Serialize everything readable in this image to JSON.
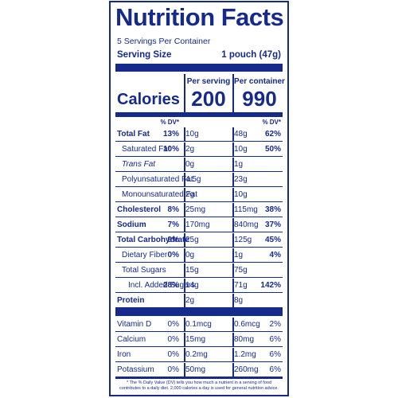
{
  "label": {
    "title": "Nutrition Facts",
    "servings_per_container": "5 Servings Per Container",
    "serving_size_label": "Serving Size",
    "serving_size_value": "1 pouch (47g)",
    "per_serving_label": "Per serving",
    "per_container_label": "Per container",
    "calories_label": "Calories",
    "calories_per_serving": "200",
    "calories_per_container": "990",
    "dv_header": "% DV*",
    "nutrients": [
      {
        "name": "Total Fat",
        "s_amt": "10g",
        "s_dv": "13%",
        "c_amt": "48g",
        "c_dv": "62%"
      },
      {
        "name": "Saturated Fat",
        "s_amt": "2g",
        "s_dv": "10%",
        "c_amt": "10g",
        "c_dv": "50%"
      },
      {
        "name": "Trans Fat",
        "s_amt": "0g",
        "s_dv": "",
        "c_amt": "1g",
        "c_dv": ""
      },
      {
        "name": "Polyunsaturated Fat",
        "s_amt": "4.5g",
        "s_dv": "",
        "c_amt": "23g",
        "c_dv": ""
      },
      {
        "name": "Monounsaturated Fat",
        "s_amt": "2g",
        "s_dv": "",
        "c_amt": "10g",
        "c_dv": ""
      },
      {
        "name": "Cholesterol",
        "s_amt": "25mg",
        "s_dv": "8%",
        "c_amt": "115mg",
        "c_dv": "38%"
      },
      {
        "name": "Sodium",
        "s_amt": "170mg",
        "s_dv": "7%",
        "c_amt": "840mg",
        "c_dv": "37%"
      },
      {
        "name": "Total Carbohydrate",
        "s_amt": "25g",
        "s_dv": "9%",
        "c_amt": "125g",
        "c_dv": "45%"
      },
      {
        "name": "Dietary Fiber",
        "s_amt": "0g",
        "s_dv": "0%",
        "c_amt": "1g",
        "c_dv": "4%"
      },
      {
        "name": "Total Sugars",
        "s_amt": "15g",
        "s_dv": "",
        "c_amt": "75g",
        "c_dv": ""
      },
      {
        "name": "Incl. Added Sugars",
        "s_amt": "14g",
        "s_dv": "28%",
        "c_amt": "71g",
        "c_dv": "142%"
      },
      {
        "name": "Protein",
        "s_amt": "2g",
        "s_dv": "",
        "c_amt": "8g",
        "c_dv": ""
      }
    ],
    "vitamins": [
      {
        "name": "Vitamin D",
        "s_amt": "0.1mcg",
        "s_dv": "0%",
        "c_amt": "0.6mcg",
        "c_dv": "2%"
      },
      {
        "name": "Calcium",
        "s_amt": "15mg",
        "s_dv": "0%",
        "c_amt": "80mg",
        "c_dv": "6%"
      },
      {
        "name": "Iron",
        "s_amt": "0.2mg",
        "s_dv": "0%",
        "c_amt": "1.2mg",
        "c_dv": "6%"
      },
      {
        "name": "Potassium",
        "s_amt": "50mg",
        "s_dv": "0%",
        "c_amt": "260mg",
        "c_dv": "6%"
      }
    ],
    "footnote": "* The % Daily Value (DV) tells you how much a nutrient in a serving of food contributes to a daily diet. 2,000 calories a day is used for general nutrition advice."
  },
  "colors": {
    "ink": "#152a8a",
    "background": "#ffffff"
  }
}
